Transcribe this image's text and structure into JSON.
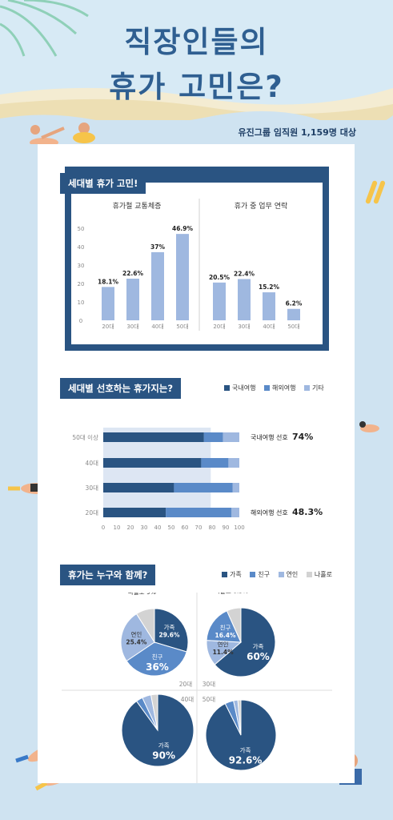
{
  "title": {
    "line1": "직장인들의",
    "line2": "휴가 고민은?"
  },
  "subtitle": "유진그룹 임직원 1,159명 대상",
  "colors": {
    "navy": "#2a5482",
    "mid": "#5a8ac8",
    "light": "#9fb8e0",
    "pale": "#cfdbee",
    "grey": "#d3d3d3"
  },
  "section1": {
    "header": "세대별 휴가 고민!"
  },
  "section2": {
    "header": "세대별 선호하는 휴가지는?",
    "legend": [
      "국내여행",
      "해외여행",
      "기타"
    ],
    "annot_top": {
      "label": "국내여행 선호",
      "value": "74%"
    },
    "annot_bottom": {
      "label": "해외여행 선호",
      "value": "48.3%"
    }
  },
  "section3": {
    "header": "휴가는 누구와 함께?",
    "legend": [
      "가족",
      "친구",
      "연인",
      "나홀로"
    ]
  },
  "chart_data": [
    {
      "type": "bar",
      "title": "휴가철 교통체증",
      "categories": [
        "20대",
        "30대",
        "40대",
        "50대"
      ],
      "values": [
        18.1,
        22.6,
        37,
        46.9
      ],
      "labels": [
        "18.1%",
        "22.6%",
        "37%",
        "46.9%"
      ],
      "yticks": [
        "0",
        "10",
        "20",
        "30",
        "40",
        "50"
      ],
      "ylim": [
        0,
        50
      ]
    },
    {
      "type": "bar",
      "title": "휴가 중 업무 연락",
      "categories": [
        "20대",
        "30대",
        "40대",
        "50대"
      ],
      "values": [
        20.5,
        22.4,
        15.2,
        6.2
      ],
      "labels": [
        "20.5%",
        "22.4%",
        "15.2%",
        "6.2%"
      ],
      "ylim": [
        0,
        50
      ]
    },
    {
      "type": "bar",
      "orientation": "horizontal",
      "stacked": true,
      "categories": [
        "50대 이상",
        "40대",
        "30대",
        "20대"
      ],
      "series": [
        {
          "name": "국내여행",
          "values": [
            74,
            72,
            52,
            46
          ]
        },
        {
          "name": "해외여행",
          "values": [
            14,
            20,
            43,
            48.3
          ]
        },
        {
          "name": "기타",
          "values": [
            12,
            8,
            5,
            5.7
          ]
        }
      ],
      "xticks": [
        "0",
        "10",
        "20",
        "30",
        "40",
        "50",
        "60",
        "70",
        "80",
        "90",
        "100"
      ],
      "xlim": [
        0,
        100
      ]
    },
    {
      "type": "pie",
      "label": "20대",
      "slices": [
        {
          "name": "가족",
          "value": 29.6,
          "text": "가족\n29.6%"
        },
        {
          "name": "친구",
          "value": 36,
          "text": "친구\n36%"
        },
        {
          "name": "연인",
          "value": 25.4,
          "text": "연인\n25.4%"
        },
        {
          "name": "나홀로",
          "value": 9,
          "text": "나홀로 9%"
        }
      ]
    },
    {
      "type": "pie",
      "label": "30대",
      "slices": [
        {
          "name": "가족",
          "value": 60,
          "text": "가족\n60%"
        },
        {
          "name": "친구",
          "value": 0,
          "text": ""
        },
        {
          "name": "연인",
          "value": 11.4,
          "text": "연인\n11.4%"
        },
        {
          "name": "친구",
          "value": 16.4,
          "text": "친구\n16.4%"
        },
        {
          "name": "나홀로",
          "value": 6.3,
          "text": "나홀로 6.3%"
        }
      ]
    },
    {
      "type": "pie",
      "label": "40대",
      "slices": [
        {
          "name": "가족",
          "value": 90,
          "text": "가족\n90%"
        },
        {
          "name": "친구",
          "value": 3,
          "text": ""
        },
        {
          "name": "연인",
          "value": 4,
          "text": ""
        },
        {
          "name": "나홀로",
          "value": 3,
          "text": ""
        }
      ]
    },
    {
      "type": "pie",
      "label": "50대",
      "slices": [
        {
          "name": "가족",
          "value": 92.6,
          "text": "가족\n92.6%"
        },
        {
          "name": "친구",
          "value": 4,
          "text": ""
        },
        {
          "name": "연인",
          "value": 2,
          "text": ""
        },
        {
          "name": "나홀로",
          "value": 1.4,
          "text": ""
        }
      ]
    }
  ]
}
